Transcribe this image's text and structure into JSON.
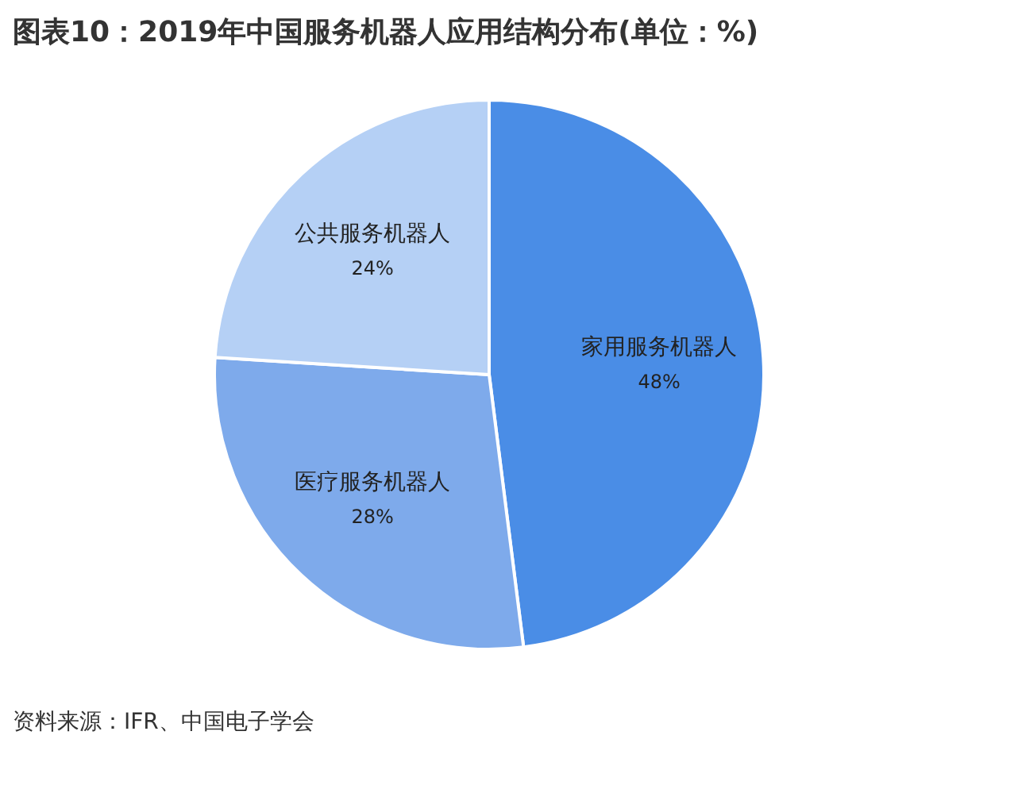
{
  "chart_data": {
    "type": "pie",
    "title": "图表10：2019年中国服务机器人应用结构分布(单位：%)",
    "categories": [
      "家用服务机器人",
      "医疗服务机器人",
      "公共服务机器人"
    ],
    "values": [
      48,
      28,
      24
    ],
    "value_labels": [
      "48%",
      "28%",
      "24%"
    ],
    "colors": [
      "#4a8de6",
      "#7eaaeb",
      "#b5d0f5"
    ],
    "legend": false,
    "annotations": [
      "资料来源：IFR、中国电子学会"
    ]
  }
}
